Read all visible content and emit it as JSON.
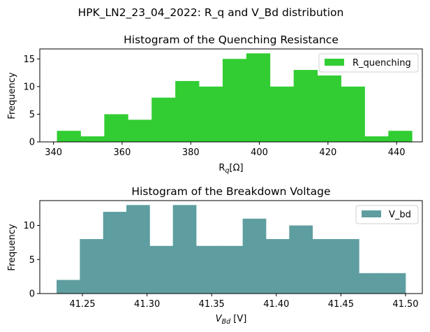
{
  "suptitle": "HPK_LN2_23_04_2022: R_q and V_Bd distribution",
  "chart_data": [
    {
      "type": "bar",
      "title": "Histogram of the Quenching Resistance",
      "xlabel": "R_q[Ω]",
      "ylabel": "Frequency",
      "series_name": "R_quenching",
      "color": "#32cd32",
      "xlim": [
        336,
        447.5
      ],
      "ylim": [
        0,
        16.8
      ],
      "bin_start": 341,
      "bin_width": 6.9,
      "values": [
        2,
        1,
        5,
        4,
        8,
        11,
        10,
        15,
        16,
        10,
        13,
        12,
        10,
        1,
        2
      ],
      "xticks": [
        340,
        360,
        380,
        400,
        420,
        440
      ],
      "xtick_labels": [
        "340",
        "360",
        "380",
        "400",
        "420",
        "440"
      ],
      "yticks": [
        0,
        5,
        10,
        15
      ],
      "ytick_labels": [
        "0",
        "5",
        "10",
        "15"
      ],
      "legend": "top-right"
    },
    {
      "type": "bar",
      "title": "Histogram of the Breakdown Voltage",
      "xlabel": "V_Bd [V]",
      "ylabel": "Frequency",
      "series_name": "V_bd",
      "color": "#5f9ea0",
      "xlim": [
        41.217,
        41.513
      ],
      "ylim": [
        0,
        13.65
      ],
      "bin_start": 41.23,
      "bin_width": 0.018,
      "values": [
        2,
        8,
        12,
        13,
        7,
        13,
        7,
        7,
        11,
        8,
        10,
        8,
        8,
        3,
        3
      ],
      "xticks": [
        41.25,
        41.3,
        41.35,
        41.4,
        41.45,
        41.5
      ],
      "xtick_labels": [
        "41.25",
        "41.30",
        "41.35",
        "41.40",
        "41.45",
        "41.50"
      ],
      "yticks": [
        0,
        5,
        10
      ],
      "ytick_labels": [
        "0",
        "5",
        "10"
      ],
      "legend": "top-right"
    }
  ]
}
